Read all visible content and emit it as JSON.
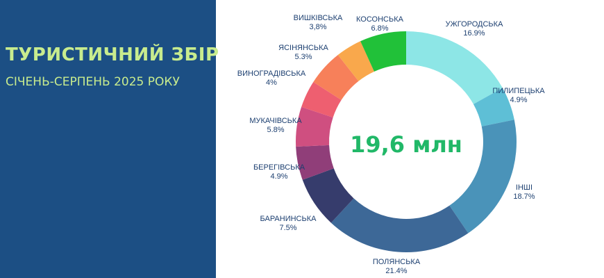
{
  "panel": {
    "title": "ТУРИСТИЧНИЙ ЗБІР",
    "subtitle": "СІЧЕНЬ-СЕРПЕНЬ 2025 РОКУ"
  },
  "chart_data": {
    "type": "pie",
    "center_label": "19,6 млн",
    "slices": [
      {
        "name": "УЖГОРОДСЬКА",
        "value_label": "16.9%",
        "value": 16.9,
        "color": "#8de6e6"
      },
      {
        "name": "ПИЛИПЕЦЬКА",
        "value_label": "4.9%",
        "value": 4.9,
        "color": "#5ebfd6"
      },
      {
        "name": "ІНШІ",
        "value_label": "18.7%",
        "value": 18.7,
        "color": "#4a93b9"
      },
      {
        "name": "ПОЛЯНСЬКА",
        "value_label": "21.4%",
        "value": 21.4,
        "color": "#3d6897"
      },
      {
        "name": "БАРАНИНСЬКА",
        "value_label": "7.5%",
        "value": 7.5,
        "color": "#363c6c"
      },
      {
        "name": "БЕРЕГІВСЬКА",
        "value_label": "4.9%",
        "value": 4.9,
        "color": "#903e79"
      },
      {
        "name": "МУКАЧІВСЬКА",
        "value_label": "5.8%",
        "value": 5.8,
        "color": "#cf4f80"
      },
      {
        "name": "ВИНОГРАДІВСЬКА",
        "value_label": "4%",
        "value": 4.0,
        "color": "#ee5f70"
      },
      {
        "name": "ЯСІНЯНСЬКА",
        "value_label": "5.3%",
        "value": 5.3,
        "color": "#f7805a"
      },
      {
        "name": "ВИШКІВСЬКА",
        "value_label": "3,8%",
        "value": 3.8,
        "color": "#f9a84c"
      },
      {
        "name": "КОСОНСЬКА",
        "value_label": "6.8%",
        "value": 6.8,
        "color": "#21c139"
      }
    ]
  }
}
